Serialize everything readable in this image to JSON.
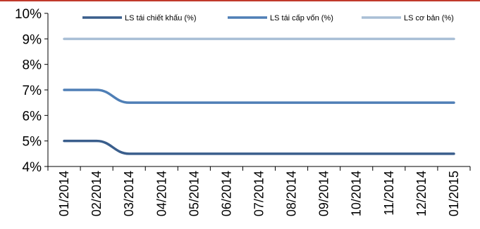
{
  "chart_data": {
    "type": "line",
    "categories": [
      "01/2014",
      "02/2014",
      "03/2014",
      "04/2014",
      "05/2014",
      "06/2014",
      "07/2014",
      "08/2014",
      "09/2014",
      "10/2014",
      "11/2014",
      "12/2014",
      "01/2015"
    ],
    "series": [
      {
        "name": "LS tái chiết khấu (%)",
        "color": "#3a5e8c",
        "values": [
          5,
          5,
          4.5,
          4.5,
          4.5,
          4.5,
          4.5,
          4.5,
          4.5,
          4.5,
          4.5,
          4.5,
          4.5
        ]
      },
      {
        "name": "LS tái cấp vốn (%)",
        "color": "#4f7fb6",
        "values": [
          7,
          7,
          6.5,
          6.5,
          6.5,
          6.5,
          6.5,
          6.5,
          6.5,
          6.5,
          6.5,
          6.5,
          6.5
        ]
      },
      {
        "name": "LS cơ bản (%)",
        "color": "#a9bfd6",
        "values": [
          9,
          9,
          9,
          9,
          9,
          9,
          9,
          9,
          9,
          9,
          9,
          9,
          9
        ]
      }
    ],
    "yticks": [
      "4%",
      "5%",
      "6%",
      "7%",
      "8%",
      "9%",
      "10%"
    ],
    "ylim": [
      4,
      10
    ],
    "grid": false,
    "legend_position": "top"
  }
}
